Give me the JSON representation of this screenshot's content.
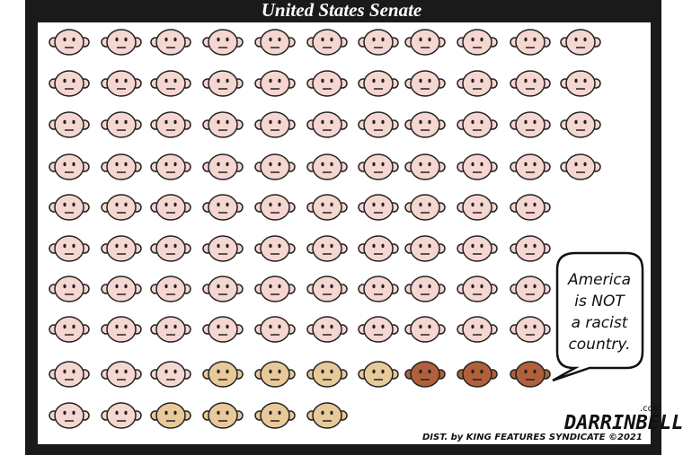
{
  "header": {
    "title": "United States Senate"
  },
  "speech_bubble": {
    "lines": [
      "America",
      "is NOT",
      "a racist",
      "country."
    ]
  },
  "credits": {
    "distribution": "DIST. by KING FEATURES SYNDICATE ©2021",
    "signature": "DARRINBELL",
    "suffix": ".com"
  }
}
